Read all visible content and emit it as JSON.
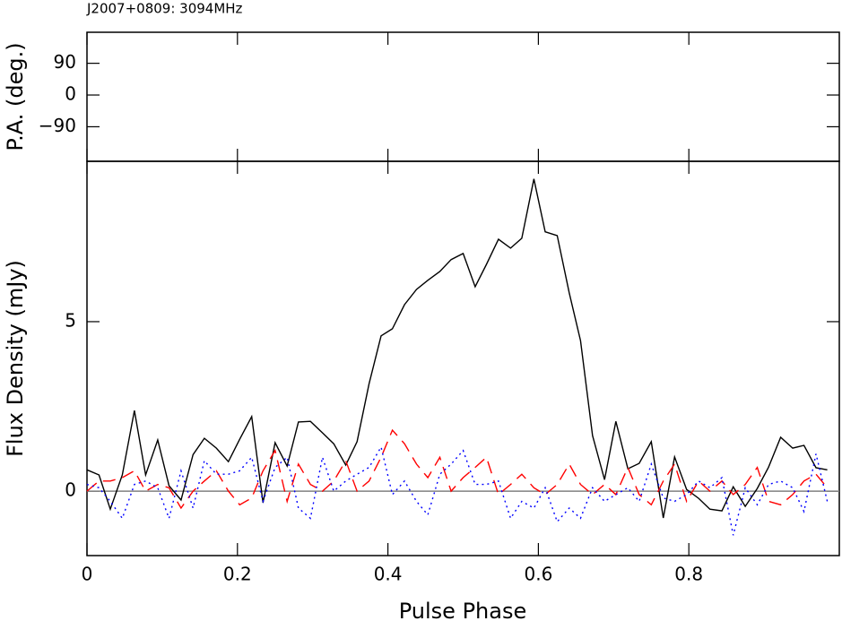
{
  "chart_data": [
    {
      "type": "line",
      "title": "J2007+0809: 3094MHz",
      "ylabel": "P.A. (deg.)",
      "xlim": [
        0,
        1
      ],
      "ylim": [
        -188,
        178
      ],
      "yticks": [
        {
          "value": -90,
          "label": "−90"
        },
        0,
        90
      ]
    },
    {
      "type": "line",
      "xlabel": "Pulse Phase",
      "ylabel": "Flux Density (mJy)",
      "xlim": [
        0,
        1
      ],
      "ylim": [
        -1.9,
        9.73
      ],
      "xticks": [
        0,
        0.2,
        0.4,
        0.6,
        0.8
      ],
      "yticks": [
        0,
        5
      ],
      "x": [
        0,
        0.016,
        0.031,
        0.047,
        0.063,
        0.078,
        0.094,
        0.109,
        0.125,
        0.141,
        0.156,
        0.172,
        0.188,
        0.203,
        0.219,
        0.234,
        0.25,
        0.266,
        0.281,
        0.297,
        0.313,
        0.328,
        0.344,
        0.359,
        0.375,
        0.391,
        0.406,
        0.422,
        0.438,
        0.453,
        0.469,
        0.484,
        0.5,
        0.516,
        0.531,
        0.547,
        0.563,
        0.578,
        0.594,
        0.609,
        0.625,
        0.641,
        0.656,
        0.672,
        0.688,
        0.703,
        0.719,
        0.734,
        0.75,
        0.766,
        0.781,
        0.797,
        0.813,
        0.828,
        0.844,
        0.859,
        0.875,
        0.891,
        0.906,
        0.922,
        0.938,
        0.953,
        0.969,
        0.984
      ],
      "series": [
        {
          "color": "#000000",
          "dash": "solid",
          "values": [
            0.63,
            0.48,
            -0.53,
            0.48,
            2.38,
            0.48,
            1.51,
            0.16,
            -0.26,
            1.08,
            1.56,
            1.27,
            0.87,
            1.53,
            2.2,
            -0.34,
            1.43,
            0.74,
            2.04,
            2.06,
            1.72,
            1.4,
            0.77,
            1.46,
            3.17,
            4.58,
            4.79,
            5.5,
            5.95,
            6.22,
            6.48,
            6.83,
            7.01,
            6.03,
            6.69,
            7.43,
            7.17,
            7.46,
            9.21,
            7.65,
            7.54,
            5.85,
            4.44,
            1.64,
            0.34,
            2.06,
            0.66,
            0.82,
            1.46,
            -0.79,
            1.01,
            0.05,
            -0.21,
            -0.53,
            -0.58,
            0.13,
            -0.45,
            0.08,
            0.71,
            1.59,
            1.27,
            1.35,
            0.69,
            0.63
          ]
        },
        {
          "color": "#ff0000",
          "dash": "dashed",
          "values": [
            0.0,
            0.3,
            0.3,
            0.4,
            0.6,
            0.0,
            0.2,
            0.1,
            -0.5,
            0.0,
            0.3,
            0.6,
            0.0,
            -0.4,
            -0.2,
            0.6,
            1.2,
            -0.3,
            0.8,
            0.2,
            0.0,
            0.3,
            0.9,
            0.0,
            0.3,
            1.0,
            1.8,
            1.4,
            0.8,
            0.4,
            1.0,
            0.0,
            0.4,
            0.7,
            1.0,
            -0.1,
            0.2,
            0.5,
            0.1,
            -0.1,
            0.2,
            0.8,
            0.2,
            -0.1,
            0.2,
            -0.1,
            0.7,
            -0.1,
            -0.4,
            0.3,
            0.8,
            -0.3,
            0.3,
            0.0,
            0.3,
            -0.1,
            0.2,
            0.7,
            -0.3,
            -0.4,
            -0.1,
            0.3,
            0.5,
            0.1
          ]
        },
        {
          "color": "#0000ff",
          "dash": "dotted",
          "values": [
            0.2,
            0.1,
            -0.3,
            -0.8,
            0.2,
            0.3,
            0.1,
            -0.8,
            0.6,
            -0.5,
            0.9,
            0.5,
            0.5,
            0.6,
            1.0,
            -0.3,
            0.7,
            1.0,
            -0.5,
            -0.8,
            1.0,
            0.0,
            0.3,
            0.5,
            0.7,
            1.3,
            -0.1,
            0.3,
            -0.3,
            -0.7,
            0.5,
            0.8,
            1.2,
            0.2,
            0.2,
            0.3,
            -0.8,
            -0.3,
            -0.5,
            0.1,
            -0.9,
            -0.5,
            -0.8,
            0.1,
            -0.3,
            -0.1,
            0.1,
            -0.3,
            0.8,
            -0.2,
            -0.3,
            -0.1,
            0.3,
            0.1,
            0.4,
            -1.3,
            0.1,
            -0.4,
            0.2,
            0.3,
            0.1,
            -0.6,
            1.1,
            -0.3
          ]
        }
      ]
    }
  ]
}
